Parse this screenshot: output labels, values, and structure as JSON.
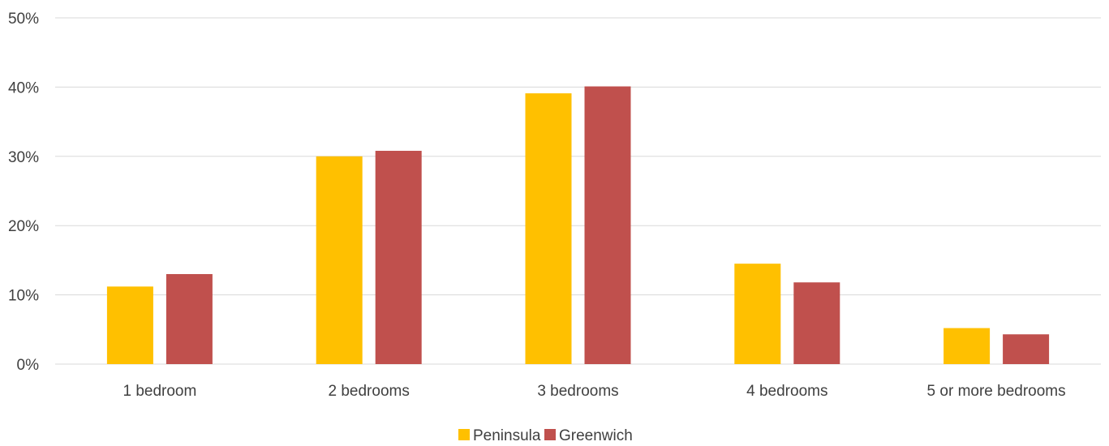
{
  "chart_data": {
    "type": "bar",
    "categories": [
      "1 bedroom",
      "2 bedrooms",
      "3 bedrooms",
      "4 bedrooms",
      "5 or more bedrooms"
    ],
    "series": [
      {
        "name": "Peninsula",
        "color": "#FFC000",
        "values": [
          11.2,
          30.0,
          39.1,
          14.5,
          5.2
        ]
      },
      {
        "name": "Greenwich",
        "color": "#C0504D",
        "values": [
          13.0,
          30.8,
          40.1,
          11.8,
          4.3
        ]
      }
    ],
    "y_ticks": [
      "0%",
      "10%",
      "20%",
      "30%",
      "40%",
      "50%"
    ],
    "ylim": [
      0,
      50
    ],
    "y_unit": "%",
    "grid": true,
    "legend_position": "bottom-center",
    "title": "",
    "xlabel": "",
    "ylabel": ""
  }
}
